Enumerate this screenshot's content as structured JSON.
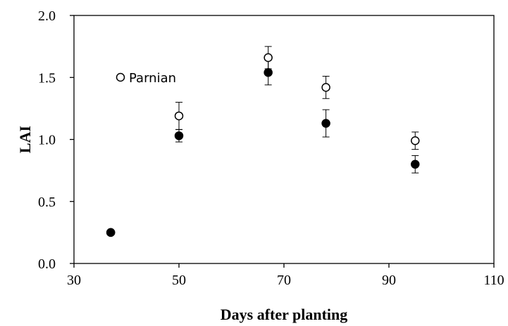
{
  "chart_data": {
    "type": "scatter",
    "title": "",
    "xlabel": "Days after planting",
    "ylabel": "LAI",
    "xlim": [
      30,
      110
    ],
    "ylim": [
      0,
      2
    ],
    "xticks": [
      30,
      50,
      70,
      90,
      110
    ],
    "yticks": [
      0.0,
      0.5,
      1.0,
      1.5,
      2.0
    ],
    "xtick_labels": [
      "30",
      "50",
      "70",
      "90",
      "110"
    ],
    "ytick_labels": [
      "0.0",
      "0.5",
      "1.0",
      "1.5",
      "2.0"
    ],
    "grid": false,
    "legend_position": "upper-left, inside plot",
    "series": [
      {
        "name": "Parnian",
        "marker": "open-circle",
        "color": "#000000",
        "x": [
          37,
          50,
          67,
          78,
          95
        ],
        "y": [
          0.25,
          1.19,
          1.66,
          1.42,
          0.99
        ],
        "err": [
          0.0,
          0.11,
          0.09,
          0.09,
          0.07
        ]
      },
      {
        "marker": "filled-circle",
        "color": "#000000",
        "x": [
          37,
          50,
          67,
          78,
          95
        ],
        "y": [
          0.25,
          1.03,
          1.54,
          1.13,
          0.8
        ],
        "err": [
          0.0,
          0.05,
          0.1,
          0.11,
          0.07
        ]
      }
    ]
  }
}
